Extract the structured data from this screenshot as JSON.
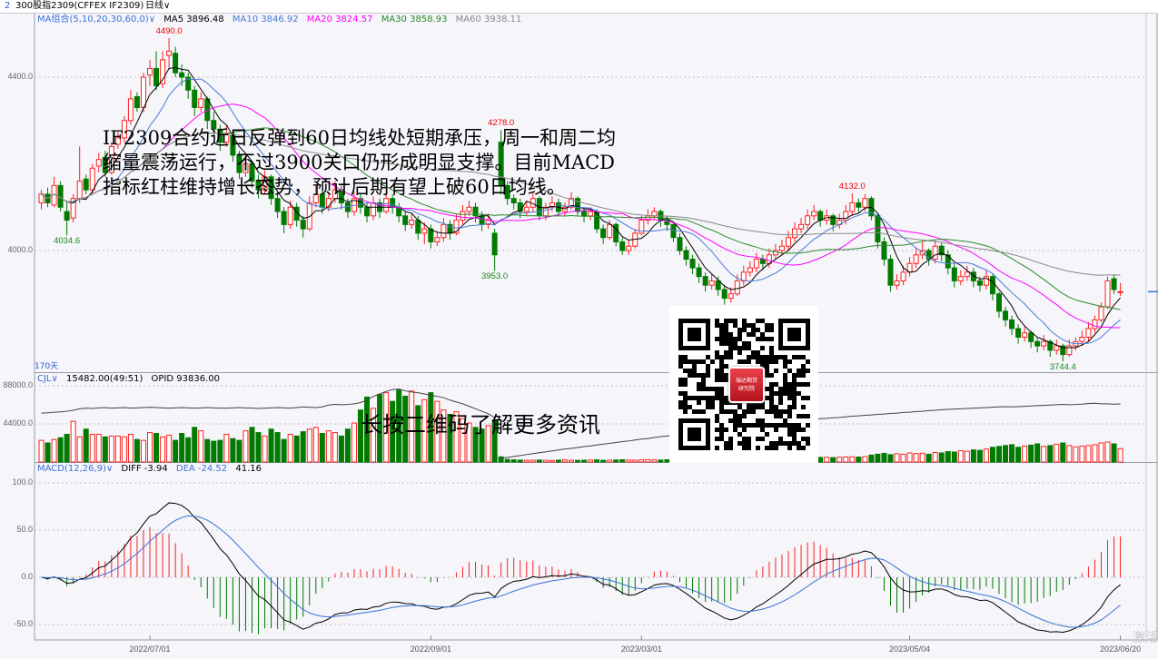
{
  "topbar": {
    "index": "2",
    "title": "300股指2309(CFFEX IF2309)",
    "period": "日线∨"
  },
  "legend_main": {
    "ma_group": "MA组合(5,10,20,30,60,0)∨",
    "ma5": "MA5 3896.48",
    "ma10": "MA10 3846.92",
    "ma20": "MA20 3824.57",
    "ma30": "MA30 3858.93",
    "ma60": "MA60 3938.11"
  },
  "legend_volume": {
    "name": "CJL∨",
    "value": "15482.00(49:51)",
    "opid": "OPID 93836.00"
  },
  "legend_macd": {
    "name": "MACD(12,26,9)∨",
    "diff": "DIFF -3.94",
    "dea": "DEA -24.52",
    "macd": "41.16"
  },
  "days_label": "170天",
  "overlay_text": "IF2309合约近日反弹到60日均线处短期承压，周一和周二均缩量震荡运行，不过3900关口仍形成明显支撑。目前MACD指标红柱维持增长态势，预计后期有望上破60日均线。",
  "qr_caption": "长按二维码了解更多资讯",
  "qr_logo": {
    "line1": "瑞达期货",
    "line2": "研究院"
  },
  "watermark": "激活",
  "colors": {
    "up": "#ff2020",
    "down": "#007a00",
    "ma5": "#000000",
    "ma10": "#4a7bd9",
    "ma20": "#ff00ff",
    "ma30": "#2a8a2a",
    "ma60": "#8a8a8a",
    "diff": "#000000",
    "dea": "#3b6fd6",
    "oi": "#444444"
  },
  "chart_data": {
    "type": "candlestick",
    "price_ticks": [
      "4400.0",
      "4000.0"
    ],
    "price_tick_values": [
      4400,
      4000
    ],
    "volume_ticks": [
      "88000.0",
      "44000.0"
    ],
    "volume_tick_values": [
      88000,
      44000
    ],
    "macd_ticks": [
      "100.0",
      "50.0",
      "0.0",
      "-50.0"
    ],
    "macd_tick_values": [
      100,
      50,
      0,
      -50
    ],
    "x_ticks": [
      {
        "label": "2022/07/01",
        "index": 17
      },
      {
        "label": "2022/09/01",
        "index": 61
      },
      {
        "label": "2023/03/01",
        "index": 94
      },
      {
        "label": "2023/05/04",
        "index": 136
      },
      {
        "label": "2023/06/20",
        "index": 169
      }
    ],
    "annotations": [
      {
        "label": "4490.0",
        "index": 20,
        "value": 4490,
        "kind": "high"
      },
      {
        "label": "4034.6",
        "index": 4,
        "value": 4034.6,
        "kind": "low"
      },
      {
        "label": "4278.0",
        "index": 72,
        "value": 4278,
        "kind": "high"
      },
      {
        "label": "3953.0",
        "index": 71,
        "value": 3953,
        "kind": "low"
      },
      {
        "label": "4132.0",
        "index": 127,
        "value": 4132,
        "kind": "high"
      },
      {
        "label": "3744.4",
        "index": 160,
        "value": 3744.4,
        "kind": "low"
      }
    ],
    "ma_periods": [
      5,
      10,
      20,
      30,
      60
    ],
    "ohlc": [
      [
        4110,
        4140,
        4095,
        4130
      ],
      [
        4130,
        4145,
        4100,
        4110
      ],
      [
        4105,
        4170,
        4100,
        4150
      ],
      [
        4150,
        4160,
        4090,
        4100
      ],
      [
        4090,
        4115,
        4034.6,
        4070
      ],
      [
        4075,
        4130,
        4065,
        4120
      ],
      [
        4120,
        4240,
        4110,
        4160
      ],
      [
        4165,
        4175,
        4130,
        4140
      ],
      [
        4140,
        4200,
        4130,
        4190
      ],
      [
        4195,
        4225,
        4180,
        4210
      ],
      [
        4215,
        4230,
        4170,
        4180
      ],
      [
        4180,
        4250,
        4175,
        4240
      ],
      [
        4245,
        4275,
        4235,
        4260
      ],
      [
        4260,
        4310,
        4250,
        4300
      ],
      [
        4300,
        4370,
        4290,
        4350
      ],
      [
        4355,
        4365,
        4320,
        4330
      ],
      [
        4330,
        4410,
        4320,
        4400
      ],
      [
        4405,
        4440,
        4380,
        4420
      ],
      [
        4420,
        4460,
        4370,
        4380
      ],
      [
        4385,
        4460,
        4375,
        4440
      ],
      [
        4450,
        4490,
        4420,
        4460
      ],
      [
        4455,
        4470,
        4400,
        4410
      ],
      [
        4410,
        4430,
        4380,
        4400
      ],
      [
        4400,
        4410,
        4350,
        4370
      ],
      [
        4370,
        4380,
        4310,
        4330
      ],
      [
        4330,
        4365,
        4320,
        4350
      ],
      [
        4350,
        4355,
        4280,
        4300
      ],
      [
        4300,
        4320,
        4265,
        4280
      ],
      [
        4280,
        4290,
        4230,
        4250
      ],
      [
        4250,
        4290,
        4240,
        4270
      ],
      [
        4265,
        4275,
        4205,
        4220
      ],
      [
        4220,
        4230,
        4165,
        4180
      ],
      [
        4180,
        4215,
        4170,
        4200
      ],
      [
        4200,
        4205,
        4145,
        4160
      ],
      [
        4160,
        4175,
        4120,
        4140
      ],
      [
        4140,
        4185,
        4130,
        4170
      ],
      [
        4170,
        4175,
        4105,
        4120
      ],
      [
        4120,
        4135,
        4075,
        4090
      ],
      [
        4090,
        4100,
        4040,
        4060
      ],
      [
        4060,
        4115,
        4050,
        4100
      ],
      [
        4100,
        4110,
        4055,
        4070
      ],
      [
        4070,
        4080,
        4030,
        4050
      ],
      [
        4050,
        4125,
        4045,
        4110
      ],
      [
        4110,
        4150,
        4100,
        4130
      ],
      [
        4130,
        4140,
        4085,
        4100
      ],
      [
        4100,
        4135,
        4090,
        4120
      ],
      [
        4120,
        4160,
        4110,
        4140
      ],
      [
        4140,
        4150,
        4095,
        4110
      ],
      [
        4110,
        4120,
        4075,
        4090
      ],
      [
        4090,
        4135,
        4080,
        4120
      ],
      [
        4120,
        4130,
        4085,
        4100
      ],
      [
        4100,
        4110,
        4065,
        4080
      ],
      [
        4080,
        4125,
        4070,
        4110
      ],
      [
        4110,
        4120,
        4075,
        4090
      ],
      [
        4090,
        4140,
        4085,
        4120
      ],
      [
        4120,
        4130,
        4085,
        4100
      ],
      [
        4100,
        4110,
        4065,
        4080
      ],
      [
        4080,
        4090,
        4045,
        4060
      ],
      [
        4060,
        4085,
        4050,
        4070
      ],
      [
        4070,
        4080,
        4025,
        4040
      ],
      [
        4040,
        4065,
        4015,
        4050
      ],
      [
        4050,
        4060,
        4005,
        4020
      ],
      [
        4020,
        4045,
        4010,
        4030
      ],
      [
        4030,
        4075,
        4020,
        4060
      ],
      [
        4060,
        4070,
        4025,
        4040
      ],
      [
        4040,
        4085,
        4035,
        4070
      ],
      [
        4070,
        4105,
        4060,
        4090
      ],
      [
        4090,
        4115,
        4080,
        4100
      ],
      [
        4100,
        4110,
        4065,
        4080
      ],
      [
        4080,
        4090,
        4045,
        4060
      ],
      [
        4060,
        4085,
        4050,
        4070
      ],
      [
        4040,
        4050,
        3953,
        3990
      ],
      [
        4250,
        4278,
        4130,
        4150
      ],
      [
        4150,
        4160,
        4105,
        4120
      ],
      [
        4120,
        4130,
        4095,
        4110
      ],
      [
        4110,
        4120,
        4075,
        4090
      ],
      [
        4090,
        4115,
        4080,
        4100
      ],
      [
        4100,
        4135,
        4090,
        4120
      ],
      [
        4120,
        4125,
        4070,
        4080
      ],
      [
        4080,
        4110,
        4070,
        4100
      ],
      [
        4100,
        4125,
        4090,
        4110
      ],
      [
        4110,
        4120,
        4080,
        4090
      ],
      [
        4090,
        4110,
        4080,
        4100
      ],
      [
        4100,
        4135,
        4095,
        4120
      ],
      [
        4120,
        4125,
        4080,
        4090
      ],
      [
        4090,
        4100,
        4065,
        4080
      ],
      [
        4080,
        4100,
        4070,
        4090
      ],
      [
        4090,
        4095,
        4040,
        4050
      ],
      [
        4050,
        4060,
        4015,
        4030
      ],
      [
        4030,
        4070,
        4025,
        4060
      ],
      [
        4060,
        4065,
        4010,
        4020
      ],
      [
        4020,
        4030,
        3990,
        4000
      ],
      [
        4000,
        4025,
        3990,
        4010
      ],
      [
        4010,
        4050,
        4005,
        4040
      ],
      [
        4040,
        4080,
        4035,
        4070
      ],
      [
        4070,
        4095,
        4060,
        4080
      ],
      [
        4080,
        4100,
        4070,
        4090
      ],
      [
        4090,
        4095,
        4055,
        4070
      ],
      [
        4070,
        4080,
        4045,
        4060
      ],
      [
        4060,
        4065,
        4020,
        4030
      ],
      [
        4030,
        4040,
        3990,
        4000
      ],
      [
        4000,
        4010,
        3965,
        3980
      ],
      [
        3980,
        3990,
        3945,
        3960
      ],
      [
        3960,
        3970,
        3925,
        3940
      ],
      [
        3940,
        3950,
        3905,
        3920
      ],
      [
        3920,
        3945,
        3910,
        3930
      ],
      [
        3930,
        3940,
        3895,
        3910
      ],
      [
        3910,
        3920,
        3875,
        3890
      ],
      [
        3890,
        3915,
        3880,
        3900
      ],
      [
        3900,
        3945,
        3895,
        3930
      ],
      [
        3930,
        3965,
        3920,
        3950
      ],
      [
        3950,
        3975,
        3940,
        3960
      ],
      [
        3960,
        3995,
        3950,
        3980
      ],
      [
        3980,
        3990,
        3955,
        3970
      ],
      [
        3970,
        4005,
        3960,
        3990
      ],
      [
        3990,
        4015,
        3980,
        4000
      ],
      [
        4000,
        4025,
        3990,
        4010
      ],
      [
        4010,
        4045,
        4000,
        4030
      ],
      [
        4030,
        4065,
        4020,
        4050
      ],
      [
        4050,
        4075,
        4040,
        4060
      ],
      [
        4060,
        4095,
        4050,
        4080
      ],
      [
        4080,
        4105,
        4070,
        4090
      ],
      [
        4090,
        4095,
        4055,
        4070
      ],
      [
        4070,
        4095,
        4060,
        4080
      ],
      [
        4080,
        4085,
        4045,
        4060
      ],
      [
        4060,
        4085,
        4050,
        4070
      ],
      [
        4070,
        4105,
        4060,
        4090
      ],
      [
        4090,
        4132,
        4080,
        4110
      ],
      [
        4110,
        4120,
        4085,
        4100
      ],
      [
        4100,
        4130,
        4090,
        4120
      ],
      [
        4120,
        4125,
        4070,
        4080
      ],
      [
        4080,
        4085,
        4005,
        4020
      ],
      [
        4020,
        4030,
        3965,
        3980
      ],
      [
        3980,
        3990,
        3905,
        3920
      ],
      [
        3920,
        3945,
        3910,
        3930
      ],
      [
        3930,
        3965,
        3920,
        3950
      ],
      [
        3950,
        3985,
        3940,
        3970
      ],
      [
        3970,
        4005,
        3960,
        3990
      ],
      [
        3990,
        4020,
        3980,
        4000
      ],
      [
        4000,
        4005,
        3965,
        3980
      ],
      [
        3980,
        4025,
        3970,
        4010
      ],
      [
        4010,
        4020,
        3975,
        3990
      ],
      [
        3990,
        4000,
        3945,
        3960
      ],
      [
        3960,
        3970,
        3915,
        3930
      ],
      [
        3930,
        3955,
        3920,
        3940
      ],
      [
        3940,
        3965,
        3930,
        3950
      ],
      [
        3950,
        3960,
        3915,
        3930
      ],
      [
        3930,
        3940,
        3905,
        3920
      ],
      [
        3920,
        3955,
        3910,
        3940
      ],
      [
        3940,
        3945,
        3885,
        3900
      ],
      [
        3900,
        3905,
        3845,
        3860
      ],
      [
        3860,
        3870,
        3825,
        3840
      ],
      [
        3840,
        3850,
        3805,
        3820
      ],
      [
        3820,
        3830,
        3785,
        3800
      ],
      [
        3800,
        3825,
        3790,
        3810
      ],
      [
        3810,
        3815,
        3775,
        3790
      ],
      [
        3790,
        3800,
        3765,
        3780
      ],
      [
        3780,
        3805,
        3770,
        3790
      ],
      [
        3790,
        3795,
        3755,
        3770
      ],
      [
        3770,
        3795,
        3760,
        3780
      ],
      [
        3780,
        3785,
        3744.4,
        3760
      ],
      [
        3760,
        3795,
        3755,
        3780
      ],
      [
        3780,
        3800,
        3770,
        3790
      ],
      [
        3790,
        3815,
        3780,
        3800
      ],
      [
        3800,
        3835,
        3790,
        3820
      ],
      [
        3820,
        3850,
        3810,
        3840
      ],
      [
        3840,
        3880,
        3835,
        3870
      ],
      [
        3870,
        3940,
        3865,
        3930
      ],
      [
        3935,
        3945,
        3900,
        3910
      ],
      [
        3905,
        3925,
        3895,
        3905
      ]
    ],
    "volume": [
      25000,
      22000,
      26000,
      28000,
      32000,
      47000,
      29000,
      38000,
      32000,
      32000,
      29000,
      30000,
      30000,
      29000,
      32000,
      26000,
      25000,
      34000,
      33000,
      29000,
      31000,
      25000,
      33000,
      28000,
      40000,
      36000,
      26000,
      24000,
      25000,
      32000,
      27000,
      25000,
      36000,
      40000,
      34000,
      30000,
      38000,
      34000,
      26000,
      32000,
      30000,
      35000,
      38000,
      40000,
      33000,
      36000,
      34000,
      30000,
      38000,
      45000,
      60000,
      75000,
      62000,
      78000,
      80000,
      70000,
      83000,
      76000,
      82000,
      65000,
      72000,
      80000,
      70000,
      60000,
      55000,
      58000,
      50000,
      45000,
      40000,
      38000,
      42000,
      48000,
      6000,
      3000,
      2500,
      2200,
      2000,
      2100,
      2300,
      2000,
      1800,
      2200,
      2500,
      2000,
      1900,
      2100,
      2300,
      2500,
      2000,
      2200,
      2400,
      2600,
      2300,
      2100,
      2500,
      2700,
      2400,
      2200,
      2600,
      2800,
      3000,
      2800,
      3200,
      3500,
      3300,
      3100,
      3400,
      3600,
      3800,
      3500,
      4000,
      4200,
      3900,
      4100,
      4500,
      4300,
      4700,
      4400,
      4800,
      5000,
      5200,
      4900,
      5300,
      5500,
      5100,
      5600,
      5800,
      6000,
      5700,
      6200,
      8000,
      9000,
      10000,
      8500,
      9500,
      9000,
      10500,
      9800,
      10200,
      9000,
      11000,
      10500,
      12000,
      11500,
      13000,
      12500,
      14000,
      13500,
      15000,
      17000,
      18000,
      19000,
      20000,
      17000,
      18500,
      19500,
      21000,
      18000,
      19000,
      20500,
      22000,
      19000,
      17500,
      18500,
      19000,
      20000,
      22000,
      23000,
      21000,
      15482
    ],
    "open_interest": [
      79000,
      79500,
      80500,
      81000,
      82000,
      83500,
      86000,
      87000,
      86500,
      87500,
      88000,
      87000,
      87500,
      88000,
      87000,
      87500,
      88000,
      88500,
      88000,
      87500,
      87000,
      87500,
      88000,
      87500,
      87000,
      87500,
      88000,
      87500,
      87000,
      87000,
      87500,
      88000,
      87500,
      87000,
      86500,
      87000,
      87500,
      88000,
      87500,
      87000,
      88000,
      89000,
      88500,
      88000,
      89000,
      92000,
      93000,
      92500,
      93000,
      94000,
      96000,
      100000,
      106000,
      110000,
      114000,
      117000,
      118000,
      115000,
      113000,
      112000,
      110000,
      108000,
      106000,
      104000,
      100000,
      97000,
      94000,
      90000,
      86000,
      82000,
      78000,
      72000,
      6000,
      7500,
      9000,
      10500,
      12000,
      13500,
      15000,
      16500,
      18000,
      19500,
      21000,
      22000,
      23500,
      25000,
      26000,
      27500,
      29000,
      30000,
      31500,
      33000,
      34000,
      35500,
      37000,
      38000,
      39500,
      41000,
      42000,
      43500,
      45000,
      46000,
      47500,
      49000,
      50000,
      51500,
      53000,
      54000,
      55500,
      57000,
      58000,
      59000,
      60000,
      61500,
      62500,
      63500,
      64500,
      65500,
      66500,
      67000,
      68000,
      69000,
      70000,
      70500,
      71500,
      72000,
      73000,
      74000,
      74500,
      75500,
      76000,
      77000,
      77500,
      78500,
      79000,
      80000,
      80500,
      81500,
      82000,
      83000,
      83500,
      84500,
      85000,
      85500,
      86000,
      86500,
      87000,
      87500,
      88000,
      88500,
      89000,
      89500,
      89000,
      89500,
      90000,
      90500,
      91000,
      91500,
      92000,
      92500,
      93000,
      92500,
      93000,
      93500,
      94500,
      95000,
      94000,
      94000,
      93500,
      93836
    ],
    "last_price": 3905,
    "grid": "dashed horizontal at ticks"
  }
}
